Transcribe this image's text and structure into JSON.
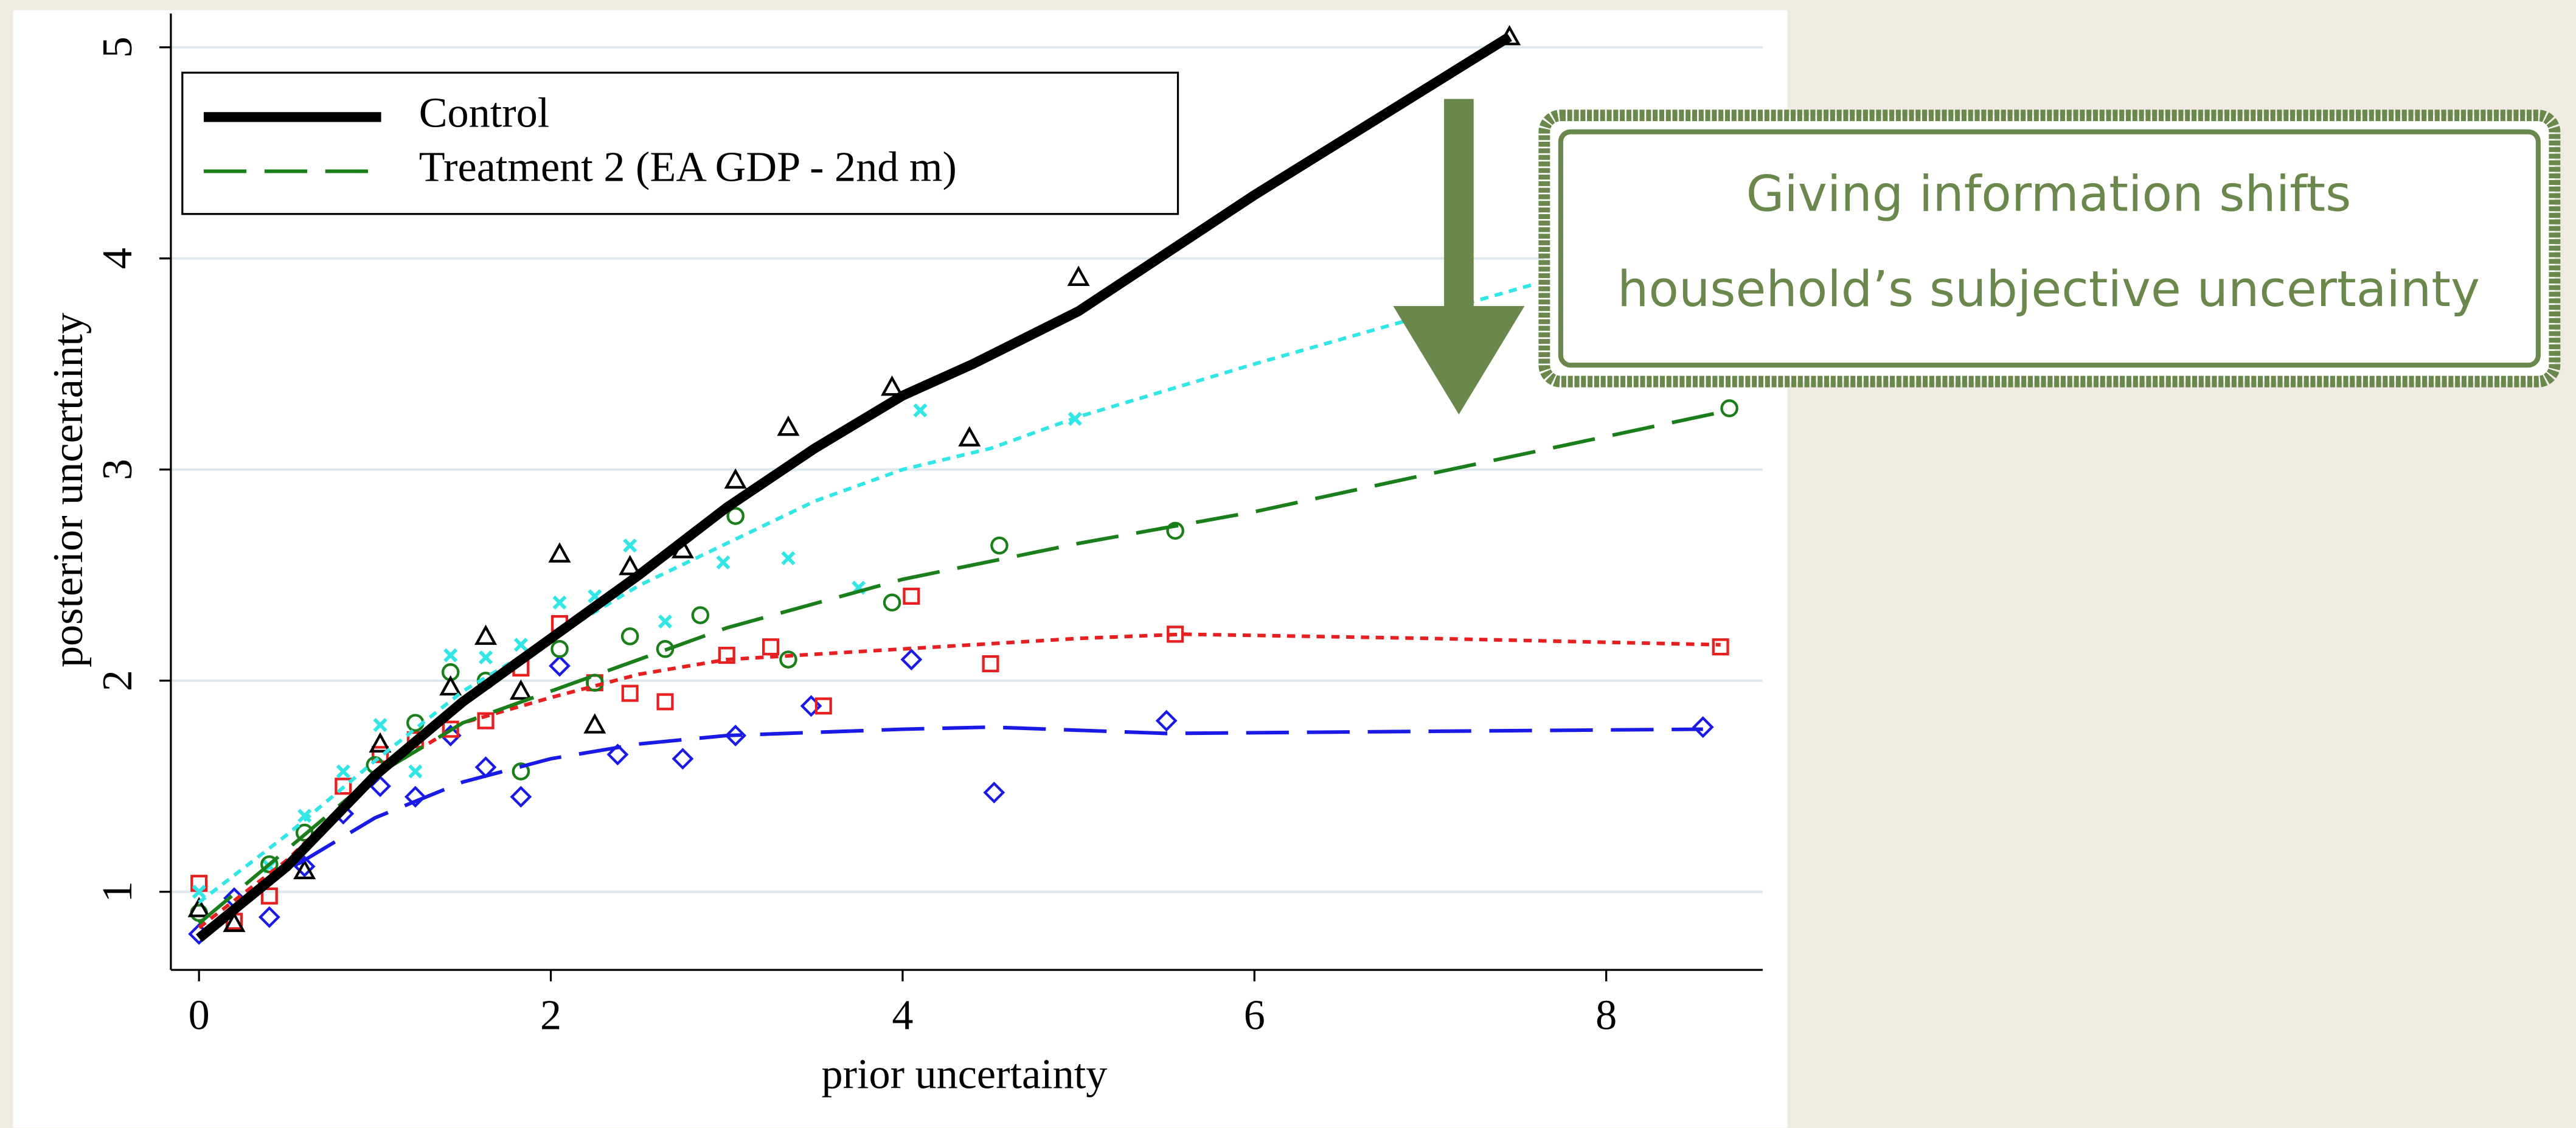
{
  "chart_data": {
    "type": "scatter",
    "x_label": "prior uncertainty",
    "y_label": "posterior uncertainty",
    "xlim": [
      -0.16,
      8.89
    ],
    "ylim": [
      0.63,
      5.16
    ],
    "xticks": [
      0,
      2,
      4,
      6,
      8
    ],
    "yticks": [
      1,
      2,
      3,
      4,
      5
    ],
    "grid": true,
    "legend": "top-left",
    "annotation": [
      "Giving information shifts",
      "household’s subjective uncertainty"
    ],
    "series": [
      {
        "name": "Control",
        "color": "#000000",
        "marker": "triangle",
        "line_style": "solid",
        "x": [
          0,
          0.2,
          0.6,
          1.03,
          1.43,
          1.63,
          1.83,
          2.05,
          2.25,
          2.45,
          2.75,
          3.05,
          3.35,
          3.94,
          4.38,
          5.0,
          7.45
        ],
        "values": [
          0.92,
          0.85,
          1.1,
          1.7,
          1.97,
          2.21,
          1.95,
          2.6,
          1.79,
          2.54,
          2.62,
          2.95,
          3.2,
          3.39,
          3.15,
          3.91,
          5.05
        ],
        "fit_x": [
          0,
          0.5,
          1,
          1.5,
          2,
          2.5,
          3,
          3.5,
          4,
          4.4,
          5,
          6,
          7.45
        ],
        "fit_values": [
          0.78,
          1.12,
          1.55,
          1.9,
          2.2,
          2.5,
          2.82,
          3.1,
          3.35,
          3.5,
          3.75,
          4.3,
          5.05
        ]
      },
      {
        "name": "Treatment 2 (EA GDP - 2nd m)",
        "color": "#1a7f1a",
        "marker": "circle",
        "line_style": "longdash",
        "x": [
          0,
          0.4,
          0.6,
          1.0,
          1.23,
          1.43,
          1.63,
          1.83,
          2.05,
          2.25,
          2.45,
          2.65,
          2.85,
          3.05,
          3.35,
          3.94,
          4.55,
          5.55,
          8.7
        ],
        "values": [
          0.9,
          1.13,
          1.28,
          1.6,
          1.8,
          2.04,
          2.0,
          1.57,
          2.15,
          1.99,
          2.21,
          2.15,
          2.31,
          2.78,
          2.1,
          2.37,
          2.64,
          2.71,
          3.29
        ],
        "fit_x": [
          0,
          0.5,
          1,
          1.5,
          2,
          2.5,
          3,
          4,
          5,
          6,
          7,
          8.7
        ],
        "fit_values": [
          0.85,
          1.2,
          1.55,
          1.8,
          1.95,
          2.1,
          2.25,
          2.48,
          2.65,
          2.8,
          2.98,
          3.28
        ]
      },
      {
        "color": "#33e6e6",
        "marker": "x",
        "line_style": "shortdash",
        "x": [
          0,
          0.4,
          0.6,
          0.82,
          1.03,
          1.23,
          1.43,
          1.63,
          1.83,
          2.05,
          2.25,
          2.45,
          2.65,
          2.98,
          3.35,
          3.75,
          4.1,
          4.98
        ],
        "values": [
          1.0,
          1.12,
          1.36,
          1.57,
          1.79,
          1.57,
          2.12,
          2.11,
          2.17,
          2.37,
          2.4,
          2.64,
          2.28,
          2.56,
          2.58,
          2.44,
          3.28,
          3.24
        ],
        "fit_x": [
          0,
          0.5,
          1,
          1.5,
          2,
          2.5,
          3,
          3.5,
          4,
          4.5,
          5,
          6,
          7.6
        ],
        "fit_values": [
          0.95,
          1.27,
          1.62,
          1.95,
          2.2,
          2.45,
          2.65,
          2.85,
          3.0,
          3.1,
          3.25,
          3.5,
          3.88
        ]
      },
      {
        "color": "#e62020",
        "marker": "square",
        "line_style": "shortdash",
        "x": [
          0,
          0.2,
          0.4,
          0.82,
          1.03,
          1.23,
          1.43,
          1.63,
          1.83,
          2.05,
          2.25,
          2.45,
          2.65,
          3.0,
          3.25,
          3.55,
          4.05,
          4.5,
          5.55,
          8.65
        ],
        "values": [
          1.04,
          0.86,
          0.98,
          1.5,
          1.65,
          1.72,
          1.77,
          1.81,
          2.06,
          2.27,
          1.99,
          1.94,
          1.9,
          2.12,
          2.16,
          1.88,
          2.4,
          2.08,
          2.22,
          2.16
        ],
        "fit_x": [
          0,
          0.5,
          1,
          1.5,
          2,
          2.5,
          3,
          4,
          5,
          5.6,
          7,
          8.65
        ],
        "fit_values": [
          0.83,
          1.15,
          1.55,
          1.8,
          1.92,
          2.03,
          2.1,
          2.15,
          2.2,
          2.22,
          2.2,
          2.17
        ]
      },
      {
        "color": "#1a1ae6",
        "marker": "diamond",
        "line_style": "longdash",
        "x": [
          0,
          0.2,
          0.4,
          0.6,
          0.82,
          1.03,
          1.23,
          1.43,
          1.63,
          1.83,
          2.05,
          2.38,
          2.75,
          3.05,
          3.48,
          4.05,
          4.52,
          5.5,
          8.55
        ],
        "values": [
          0.8,
          0.97,
          0.88,
          1.12,
          1.37,
          1.5,
          1.45,
          1.74,
          1.59,
          1.45,
          2.07,
          1.65,
          1.63,
          1.74,
          1.88,
          2.1,
          1.47,
          1.81,
          1.78
        ],
        "fit_x": [
          0,
          0.5,
          1,
          1.5,
          2,
          2.5,
          3,
          4,
          4.5,
          5.5,
          7,
          8.55
        ],
        "fit_values": [
          0.8,
          1.1,
          1.35,
          1.52,
          1.63,
          1.7,
          1.74,
          1.77,
          1.78,
          1.75,
          1.76,
          1.77
        ]
      }
    ]
  }
}
